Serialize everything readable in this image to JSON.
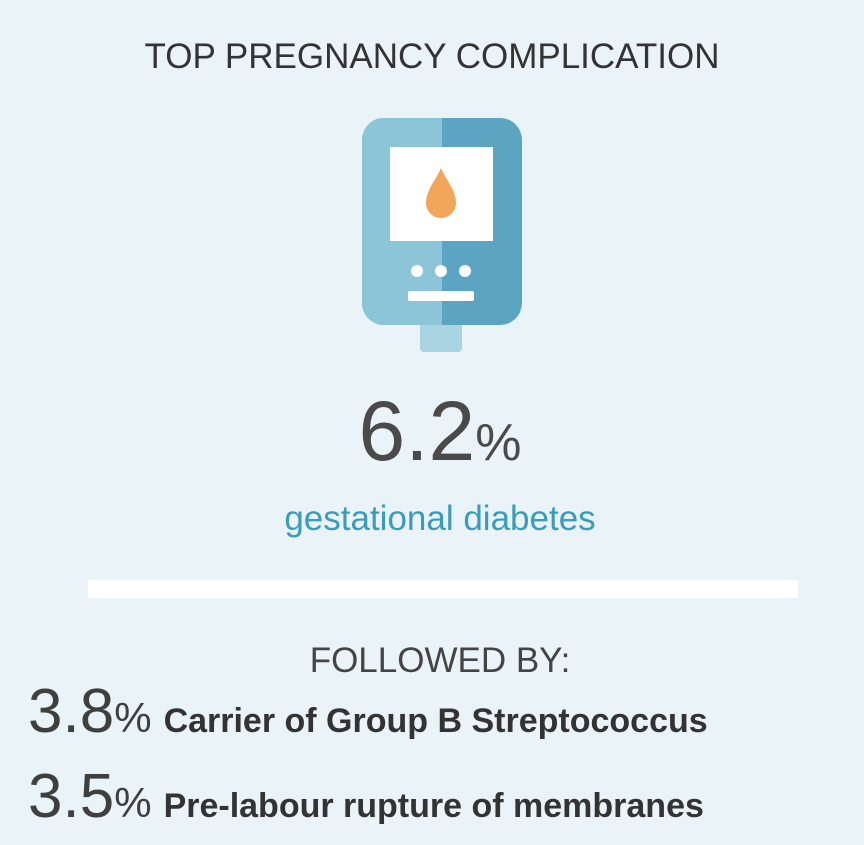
{
  "title": "TOP PREGNANCY COMPLICATION",
  "top": {
    "value": "6.2",
    "unit": "%",
    "label": "gestational diabetes"
  },
  "followed_by": {
    "heading": "FOLLOWED BY:",
    "items": [
      {
        "value": "3.8",
        "unit": "%",
        "label": "Carrier of Group B Streptococcus"
      },
      {
        "value": "3.5",
        "unit": "%",
        "label": "Pre-labour rupture of membranes"
      }
    ]
  }
}
